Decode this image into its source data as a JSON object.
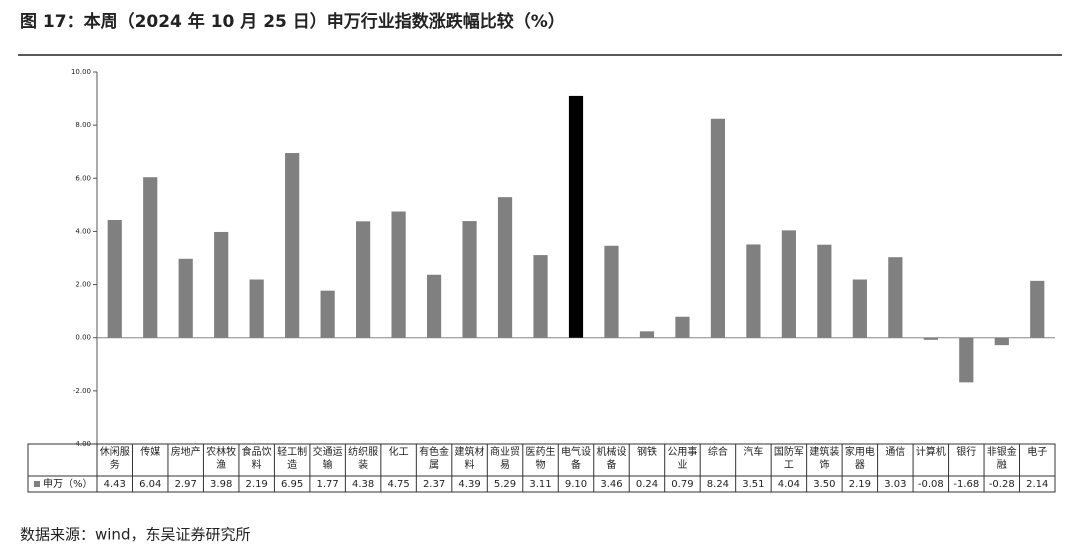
{
  "chart_data": {
    "type": "bar",
    "title": "图 17：本周（2024 年 10 月 25 日）申万行业指数涨跌幅比较（%）",
    "source": "数据来源：wind，东吴证券研究所",
    "categories": [
      "休闲服务",
      "传媒",
      "房地产",
      "农林牧渔",
      "食品饮料",
      "轻工制造",
      "交通运输",
      "纺织服装",
      "化工",
      "有色金属",
      "建筑材料",
      "商业贸易",
      "医药生物",
      "电气设备",
      "机械设备",
      "钢铁",
      "公用事业",
      "综合",
      "汽车",
      "国防军工",
      "建筑装饰",
      "家用电器",
      "通信",
      "计算机",
      "银行",
      "非银金融",
      "电子"
    ],
    "series": [
      {
        "name": "申万（%）",
        "color": "#808080",
        "colors": [
          "#808080",
          "#808080",
          "#808080",
          "#808080",
          "#808080",
          "#808080",
          "#808080",
          "#808080",
          "#808080",
          "#808080",
          "#808080",
          "#808080",
          "#808080",
          "#000000",
          "#808080",
          "#808080",
          "#808080",
          "#808080",
          "#808080",
          "#808080",
          "#808080",
          "#808080",
          "#808080",
          "#808080",
          "#808080",
          "#808080",
          "#808080"
        ],
        "values": [
          4.43,
          6.04,
          2.97,
          3.98,
          2.19,
          6.95,
          1.77,
          4.38,
          4.75,
          2.37,
          4.39,
          5.29,
          3.11,
          9.1,
          3.46,
          0.24,
          0.79,
          8.24,
          3.51,
          4.04,
          3.5,
          2.19,
          3.03,
          -0.08,
          -1.68,
          -0.28,
          2.14
        ],
        "value_labels": [
          "4.43",
          "6.04",
          "2.97",
          "3.98",
          "2.19",
          "6.95",
          "1.77",
          "4.38",
          "4.75",
          "2.37",
          "4.39",
          "5.29",
          "3.11",
          "9.10",
          "3.46",
          "0.24",
          "0.79",
          "8.24",
          "3.51",
          "4.04",
          "3.50",
          "2.19",
          "3.03",
          "-0.08",
          "-1.68",
          "-0.28",
          "2.14"
        ]
      }
    ],
    "ylim": [
      -4,
      10
    ],
    "yticks": [
      {
        "value": -4,
        "label": "-4.00"
      },
      {
        "value": -2,
        "label": "-2.00"
      },
      {
        "value": 0,
        "label": "0.00"
      },
      {
        "value": 2,
        "label": "2.00"
      },
      {
        "value": 4,
        "label": "4.00"
      },
      {
        "value": 6,
        "label": "6.00"
      },
      {
        "value": 8,
        "label": "8.00"
      },
      {
        "value": 10,
        "label": "10.00"
      }
    ],
    "grid": false
  }
}
